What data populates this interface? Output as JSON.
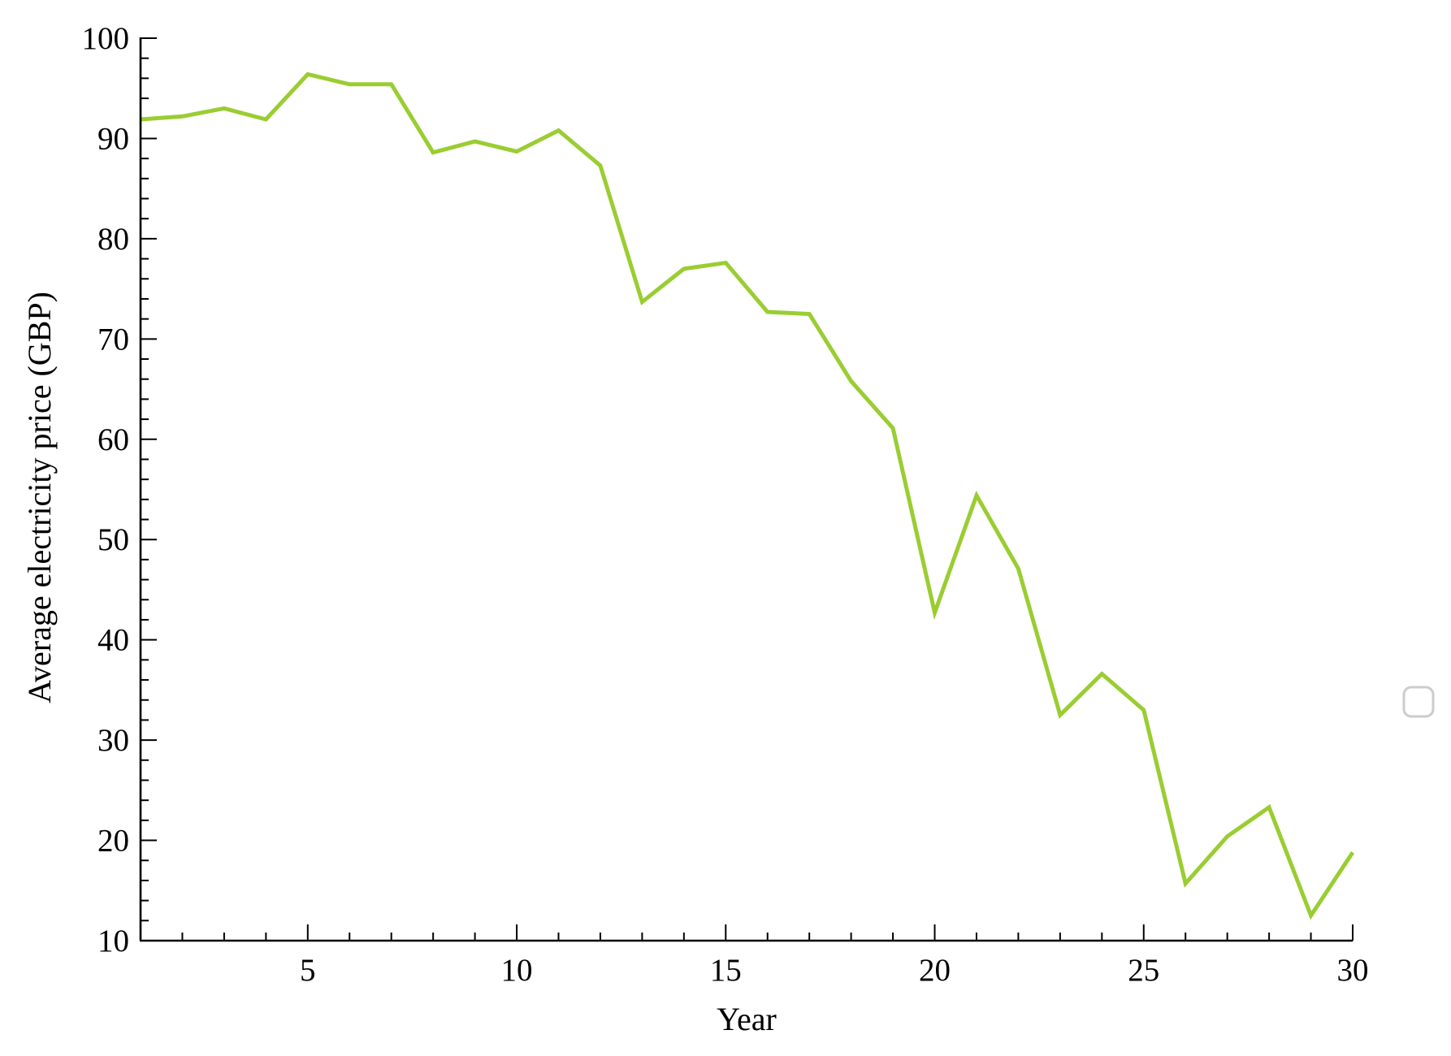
{
  "chart_data": {
    "type": "line",
    "title": "",
    "xlabel": "Year",
    "ylabel": "Average electricity price (GBP)",
    "xlim": [
      1,
      30
    ],
    "ylim": [
      10,
      100
    ],
    "x_ticks": [
      5,
      10,
      15,
      20,
      25,
      30
    ],
    "y_ticks": [
      10,
      20,
      30,
      40,
      50,
      60,
      70,
      80,
      90,
      100
    ],
    "x_minor_step": 1,
    "y_minor_step": 2,
    "grid": false,
    "legend": {
      "placement": "center-right",
      "entries": []
    },
    "series": [
      {
        "color": "#9acd32",
        "x": [
          1,
          2,
          3,
          4,
          5,
          6,
          7,
          8,
          9,
          10,
          11,
          12,
          13,
          14,
          15,
          16,
          17,
          18,
          19,
          20,
          21,
          22,
          23,
          24,
          25,
          26,
          27,
          28,
          29,
          30
        ],
        "values": [
          91.9,
          92.2,
          93.0,
          91.9,
          96.4,
          95.4,
          95.4,
          88.6,
          89.7,
          88.7,
          90.8,
          87.3,
          73.7,
          77.0,
          77.6,
          72.7,
          72.5,
          65.8,
          61.1,
          42.7,
          54.4,
          47.1,
          32.5,
          36.6,
          33.0,
          15.7,
          20.4,
          23.3,
          12.5,
          18.8
        ]
      }
    ]
  }
}
